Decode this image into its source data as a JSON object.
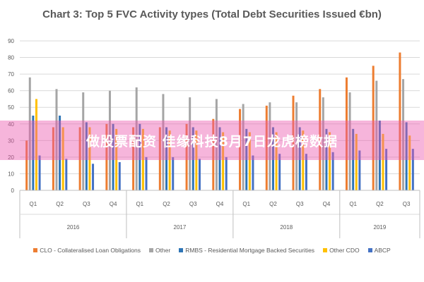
{
  "chart_data": {
    "type": "bar",
    "title": "Chart 3: Top 5 FVC Activity types (Total Debt Securities Issued €bn)",
    "ylim": [
      0,
      90
    ],
    "yticks": [
      0,
      10,
      20,
      30,
      40,
      50,
      60,
      70,
      80,
      90
    ],
    "grid": true,
    "legend_position": "bottom",
    "categories": [
      "Q1",
      "Q2",
      "Q3",
      "Q4",
      "Q1",
      "Q2",
      "Q3",
      "Q4",
      "Q1",
      "Q2",
      "Q3",
      "Q4",
      "Q1",
      "Q2",
      "Q3"
    ],
    "groups": [
      {
        "label": "2016",
        "count": 4
      },
      {
        "label": "2017",
        "count": 4
      },
      {
        "label": "2018",
        "count": 4
      },
      {
        "label": "2019",
        "count": 3
      }
    ],
    "series": [
      {
        "name": "CLO - Collateralised Loan Obligations",
        "color": "#ed7d31",
        "values": [
          30,
          38,
          38,
          40,
          38,
          38,
          40,
          43,
          49,
          51,
          57,
          61,
          68,
          75,
          83
        ]
      },
      {
        "name": "Other",
        "color": "#a5a5a5",
        "values": [
          68,
          61,
          59,
          60,
          62,
          58,
          56,
          55,
          52,
          53,
          53,
          56,
          59,
          66,
          67
        ]
      },
      {
        "name": "RMBS - Residential Mortgage Backed Securities",
        "color": "#2e75b6",
        "values": [
          45,
          45,
          41,
          40,
          40,
          38,
          38,
          38,
          37,
          38,
          38,
          37,
          37,
          42,
          41
        ]
      },
      {
        "name": "Other CDO",
        "color": "#ffc000",
        "values": [
          55,
          38,
          38,
          37,
          37,
          36,
          36,
          35,
          35,
          35,
          36,
          35,
          34,
          34,
          33
        ]
      },
      {
        "name": "ABCP",
        "color": "#4472c4",
        "values": [
          21,
          19,
          16,
          17,
          20,
          20,
          19,
          20,
          21,
          22,
          22,
          23,
          24,
          25,
          25
        ]
      }
    ]
  },
  "overlay": {
    "text": "做股票配资 佳缘科技8月7日龙虎榜数据"
  }
}
